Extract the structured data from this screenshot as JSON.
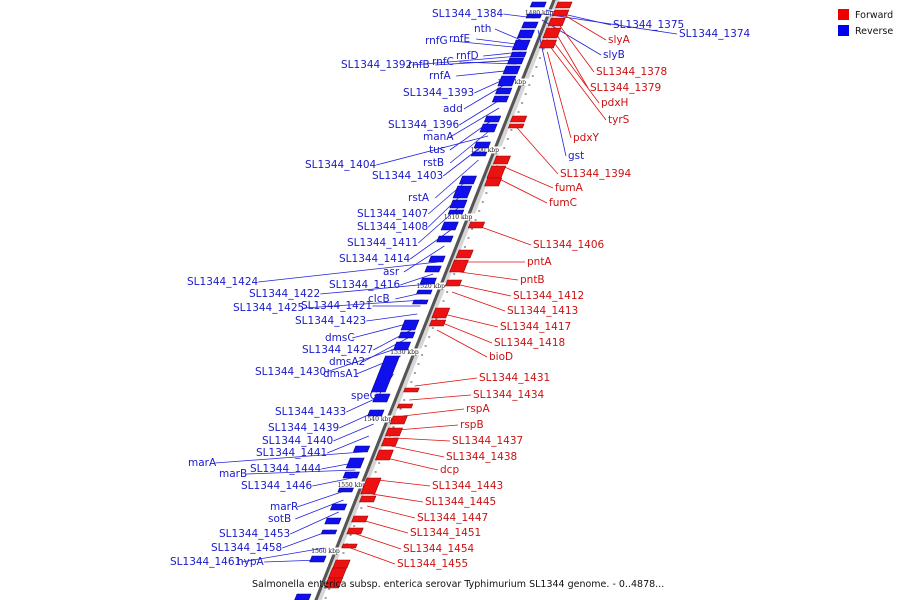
{
  "caption": "Salmonella enterica subsp. enterica serovar Typhimurium SL1344 genome. - 0..4878...",
  "legend": [
    {
      "label": "Forward",
      "color": "#ee0000"
    },
    {
      "label": "Reverse",
      "color": "#0000ee"
    }
  ],
  "ticks": [
    "1480 kbp",
    "1490 kbp",
    "1500 kbp",
    "1510 kbp",
    "1520 kbp",
    "1530 kbp",
    "1540 kbp",
    "1550 kbp",
    "1560 kbp"
  ],
  "reverse_labels": [
    "SL1344_1384",
    "nth",
    "rnfE",
    "rnfG",
    "rnfD",
    "SL1344_1392",
    "rnfB",
    "rnfC",
    "rnfA",
    "SL1344_1393",
    "add",
    "SL1344_1396",
    "manA",
    "tus",
    "rstB",
    "SL1344_1404",
    "SL1344_1403",
    "rstA",
    "SL1344_1407",
    "SL1344_1408",
    "SL1344_1411",
    "SL1344_1414",
    "asr",
    "SL1344_1424",
    "SL1344_1416",
    "SL1344_1422",
    "clcB",
    "SL1344_1425",
    "SL1344_1421",
    "SL1344_1423",
    "dmsC",
    "SL1344_1427",
    "dmsA2",
    "SL1344_1430",
    "dmsA1",
    "speG",
    "SL1344_1433",
    "SL1344_1439",
    "SL1344_1440",
    "SL1344_1441",
    "marA",
    "SL1344_1444",
    "marB",
    "SL1344_1446",
    "marR",
    "sotB",
    "SL1344_1453",
    "SL1344_1458",
    "SL1344_1461",
    "hypA",
    "SL1344_1375",
    "SL1344_1374",
    "slyB",
    "gst"
  ],
  "forward_labels": [
    "slyA",
    "SL1344_1378",
    "SL1344_1379",
    "pdxH",
    "tyrS",
    "pdxY",
    "SL1344_1394",
    "fumA",
    "fumC",
    "SL1344_1406",
    "pntA",
    "pntB",
    "SL1344_1412",
    "SL1344_1413",
    "SL1344_1417",
    "SL1344_1418",
    "bioD",
    "SL1344_1431",
    "SL1344_1434",
    "rspA",
    "rspB",
    "SL1344_1437",
    "SL1344_1438",
    "dcp",
    "SL1344_1443",
    "SL1344_1445",
    "SL1344_1447",
    "SL1344_1451",
    "SL1344_1454",
    "SL1344_1455"
  ]
}
